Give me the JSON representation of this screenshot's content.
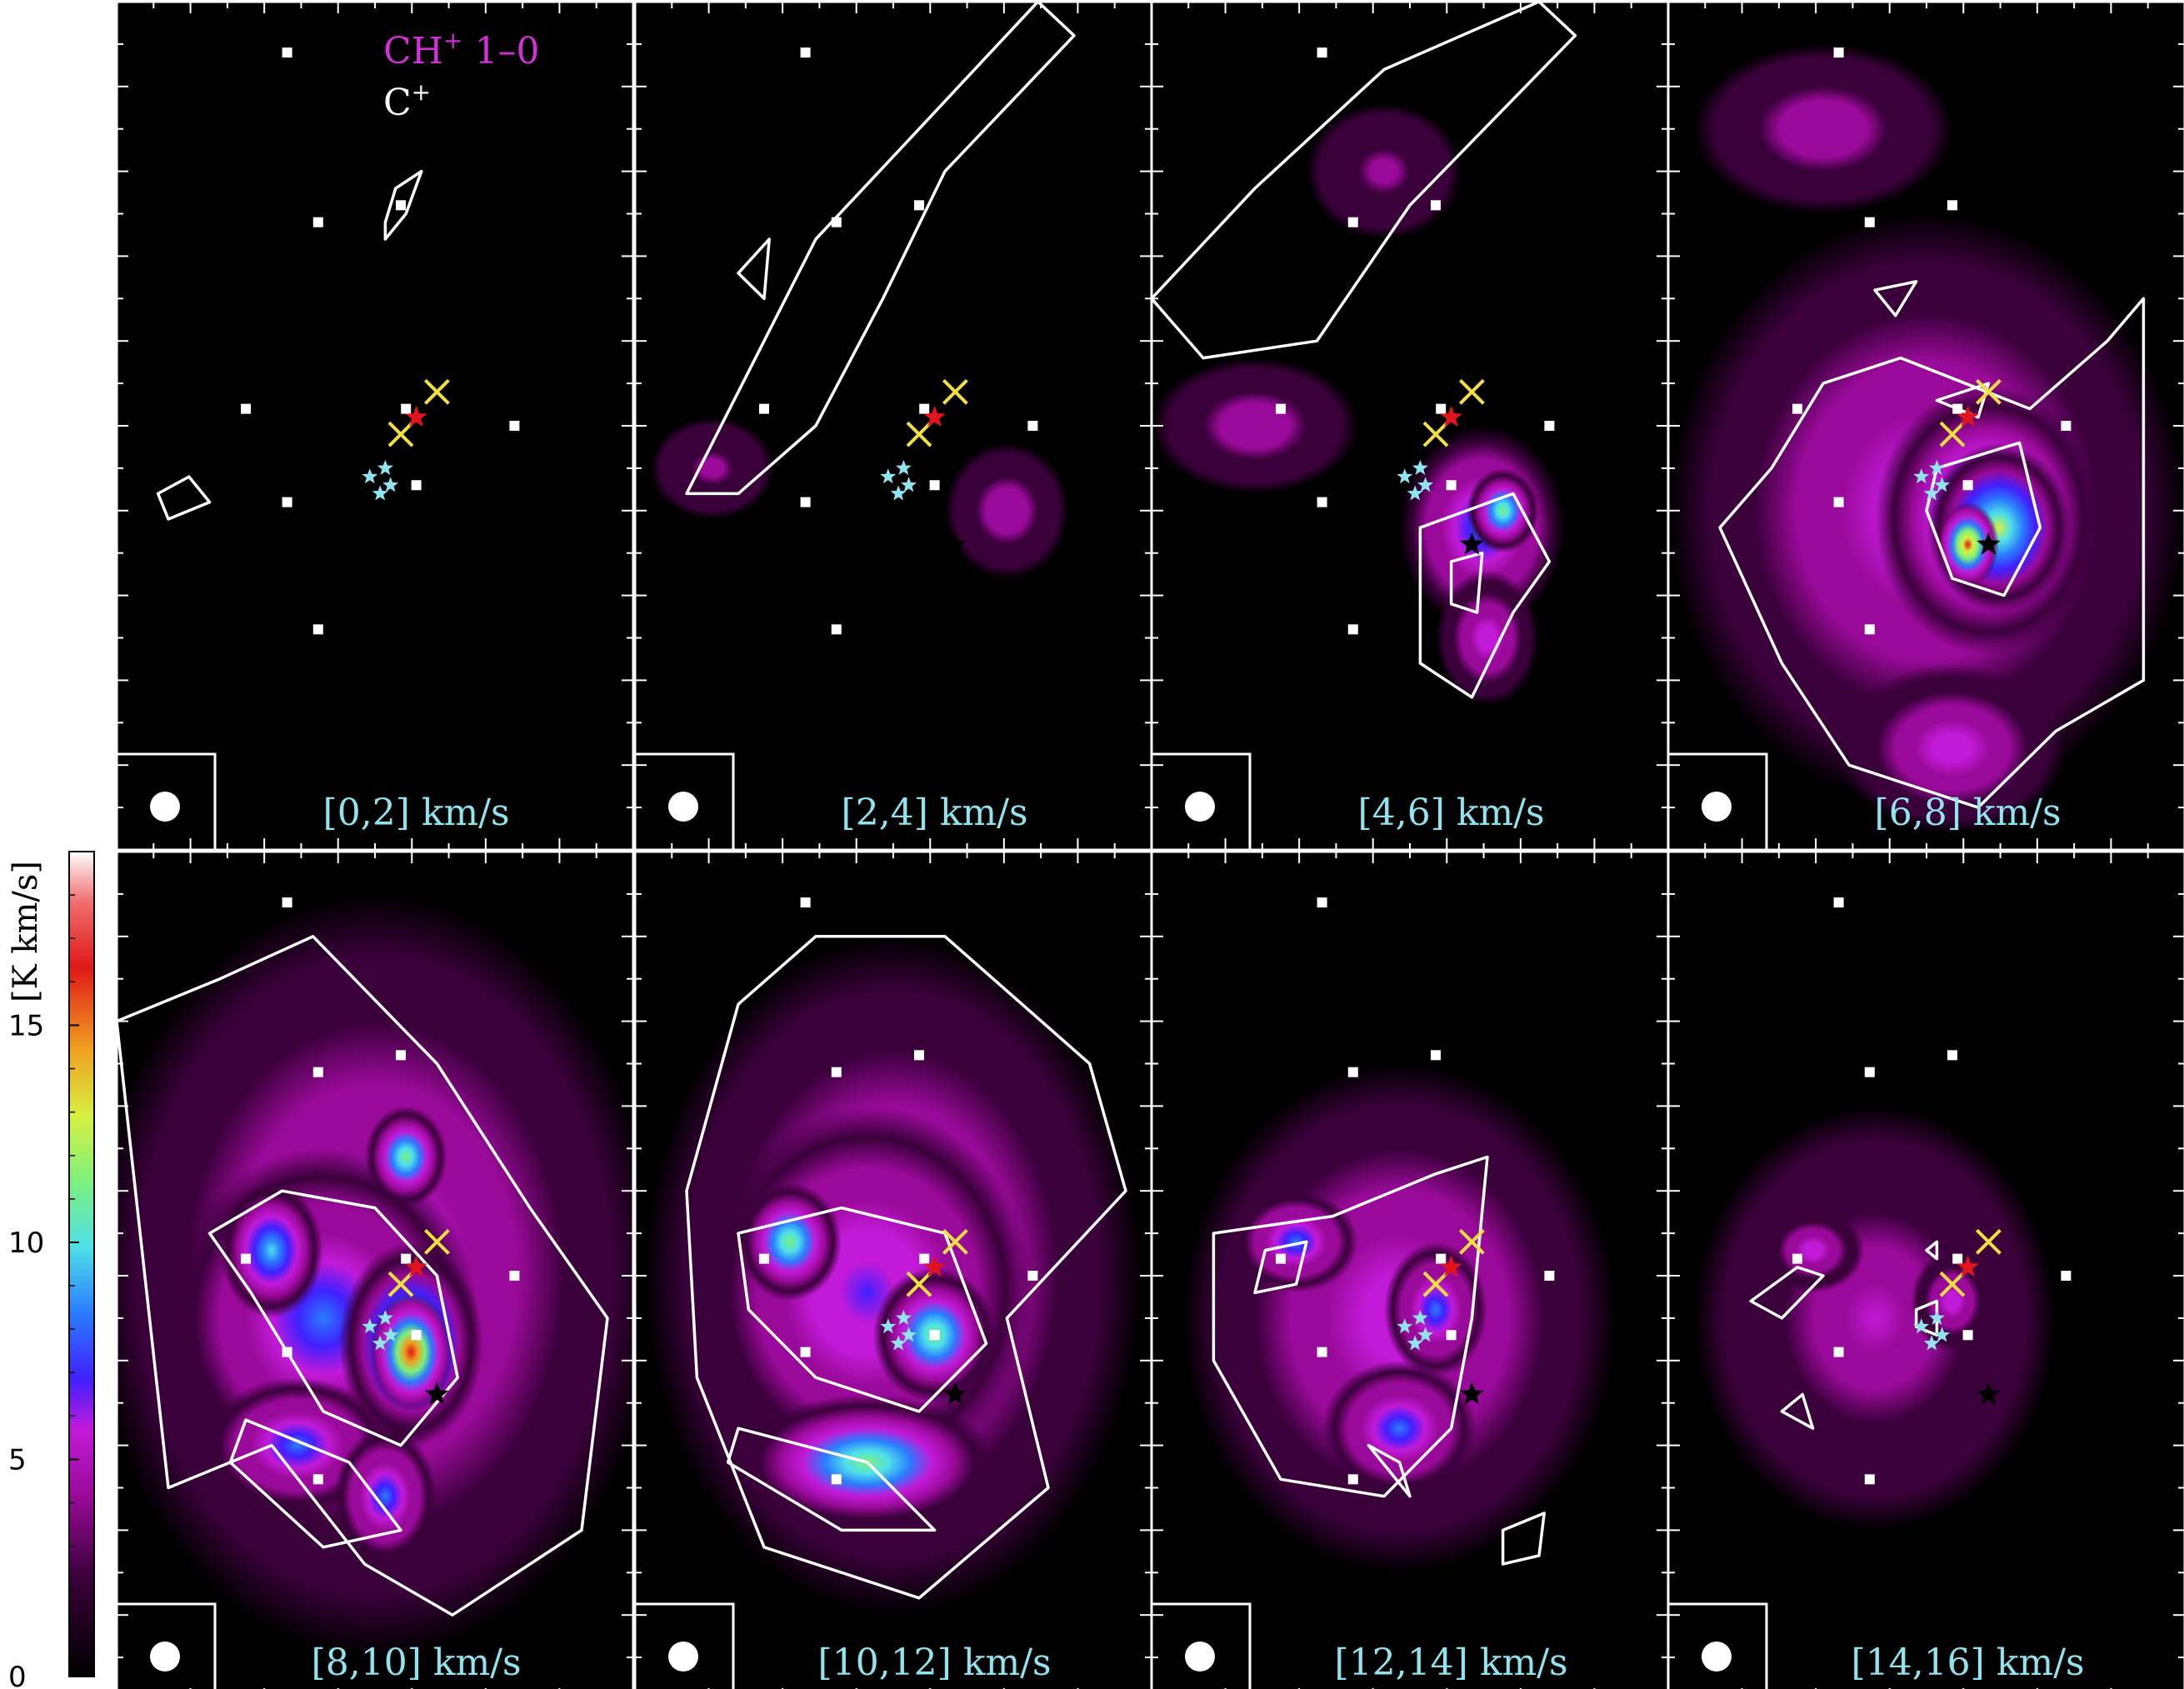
{
  "figure": {
    "legend": {
      "line1_species": "CH",
      "line1_sup": "+",
      "line1_transition": " 1–0",
      "line2_species": "C",
      "line2_sup": "+"
    },
    "colorbar_label": "[K km/s]",
    "colorbar_ticks": [
      "0",
      "5",
      "10",
      "15"
    ],
    "colors": {
      "contour": "#ffffff",
      "marker_square": "#ffffff",
      "marker_cross": "#f3e040",
      "star_red": "#e1141e",
      "star_cyan": "#8fe4ee",
      "star_black": "#000000",
      "label": "#8fe4ee",
      "legend_ch": "#d42fd8"
    },
    "icons": [
      "white-square-marker",
      "yellow-cross-marker",
      "red-star-marker",
      "cyan-star-marker",
      "black-star-marker",
      "beam-circle"
    ]
  },
  "chart_data": {
    "type": "heatmap",
    "colorscale": "black-magenta-blue-cyan-green-yellow-red-white",
    "colorbar_range": [
      0,
      19
    ],
    "colorbar_ticks": [
      0,
      5,
      10,
      15
    ],
    "colorbar_label": "[K km/s]",
    "panels": [
      {
        "label": "[0,2] km/s",
        "peak": 1.5
      },
      {
        "label": "[2,4] km/s",
        "peak": 2.5
      },
      {
        "label": "[4,6] km/s",
        "peak": 7
      },
      {
        "label": "[6,8] km/s",
        "peak": 15
      },
      {
        "label": "[8,10] km/s",
        "peak": 17
      },
      {
        "label": "[10,12] km/s",
        "peak": 10
      },
      {
        "label": "[12,14] km/s",
        "peak": 7
      },
      {
        "label": "[14,16] km/s",
        "peak": 3
      }
    ]
  }
}
